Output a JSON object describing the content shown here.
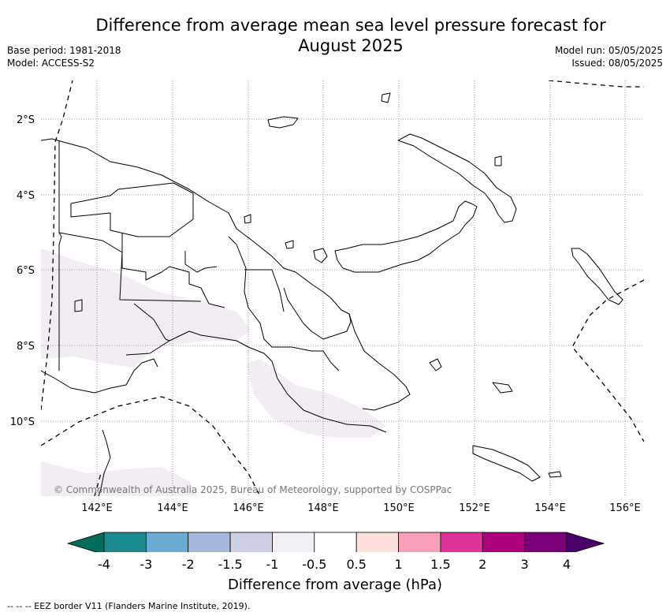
{
  "title": "Difference from average mean sea level pressure forecast for August 2025",
  "title_line1": "Difference from average mean sea level pressure forecast for",
  "title_line2": "August 2025",
  "meta_left": {
    "base_period": "Base period: 1981-2018",
    "model": "Model: ACCESS-S2"
  },
  "meta_right": {
    "model_run": "Model run: 05/05/2025",
    "issued": "Issued: 08/05/2025"
  },
  "map": {
    "lat_labels": [
      "2°S",
      "4°S",
      "6°S",
      "8°S",
      "10°S"
    ],
    "lon_labels": [
      "142°E",
      "144°E",
      "146°E",
      "148°E",
      "150°E",
      "152°E",
      "154°E",
      "156°E"
    ],
    "anomaly_region_color": "#f1edf3",
    "coastline_color": "#000000",
    "grid_color": "#808080",
    "eez_style": "dashed"
  },
  "copyright": "© Commonwealth of Australia 2025, Bureau of Meteorology, supported by COSPPac",
  "colorbar": {
    "labels": [
      "-4",
      "-3",
      "-2",
      "-1.5",
      "-1",
      "-0.5",
      "0.5",
      "1",
      "1.5",
      "2",
      "3",
      "4"
    ],
    "colors": [
      "#1a8a8f",
      "#6aacd3",
      "#a6b8db",
      "#cfd0e6",
      "#f2eff5",
      "#ffffff",
      "#fde0dd",
      "#f99fb9",
      "#dd3497",
      "#ad017e",
      "#7a0177"
    ],
    "under_color": "#016c59",
    "over_color": "#49006a",
    "title": "Difference from average (hPa)"
  },
  "footer": "-- -- -- EEZ border V11 (Flanders Marine Institute, 2019)."
}
